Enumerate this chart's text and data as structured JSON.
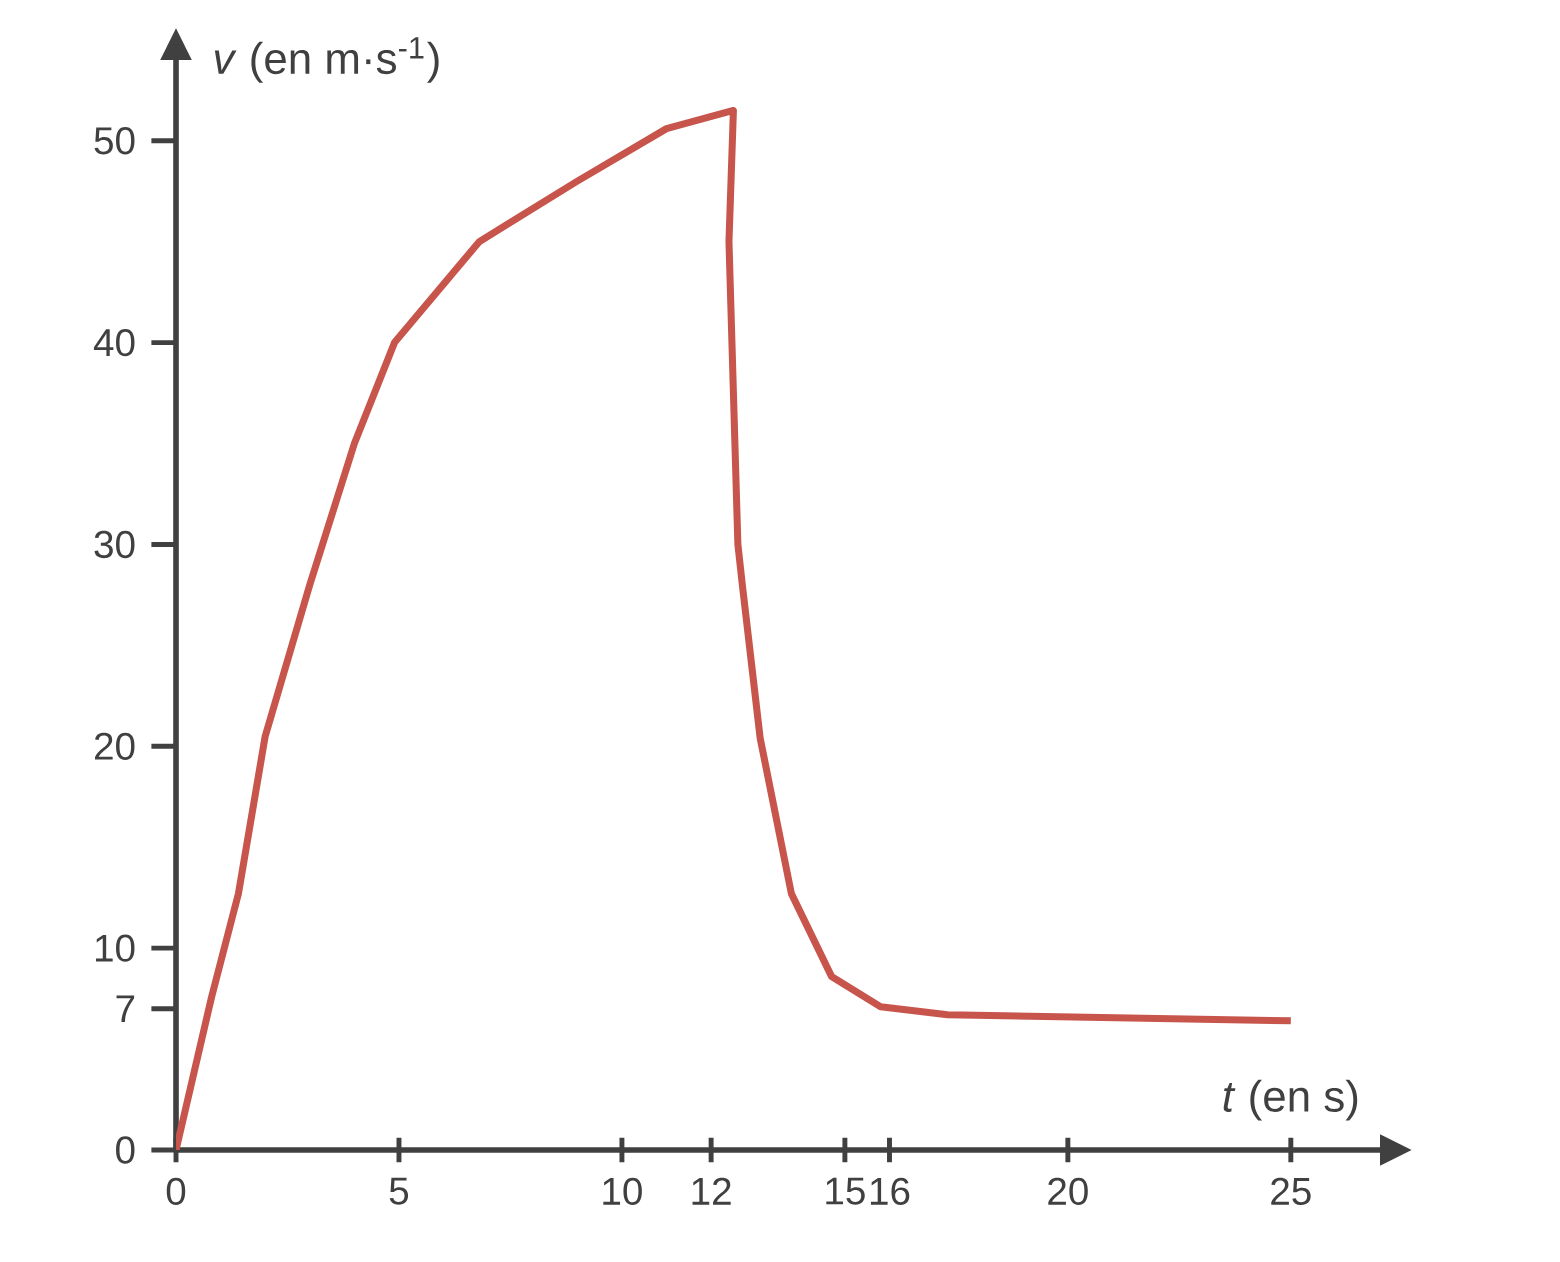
{
  "chart_data": {
    "type": "line",
    "xlabel": "*t* (en s)",
    "ylabel": "*v* (en m·s$^{-1}$)",
    "xlim": [
      0,
      27
    ],
    "ylim": [
      0,
      54
    ],
    "xticks": [
      0,
      5,
      10,
      12,
      15,
      16,
      20,
      25
    ],
    "yticks": [
      0,
      7,
      10,
      20,
      30,
      40,
      50
    ],
    "series": [
      {
        "color": "#c8554c",
        "x": [
          0,
          0.8,
          1.4,
          2.0,
          3.0,
          4.0,
          4.9,
          6.8,
          9.0,
          11.0,
          12.5,
          12.4,
          12.6,
          12.7,
          13.1,
          13.8,
          14.7,
          15.8,
          17.3,
          25
        ],
        "values": [
          0,
          7.6,
          12.7,
          20.5,
          28,
          35,
          40,
          45,
          48,
          50.6,
          51.5,
          45,
          30,
          28,
          20.4,
          12.7,
          8.6,
          7.1,
          6.7,
          6.4
        ]
      }
    ]
  }
}
